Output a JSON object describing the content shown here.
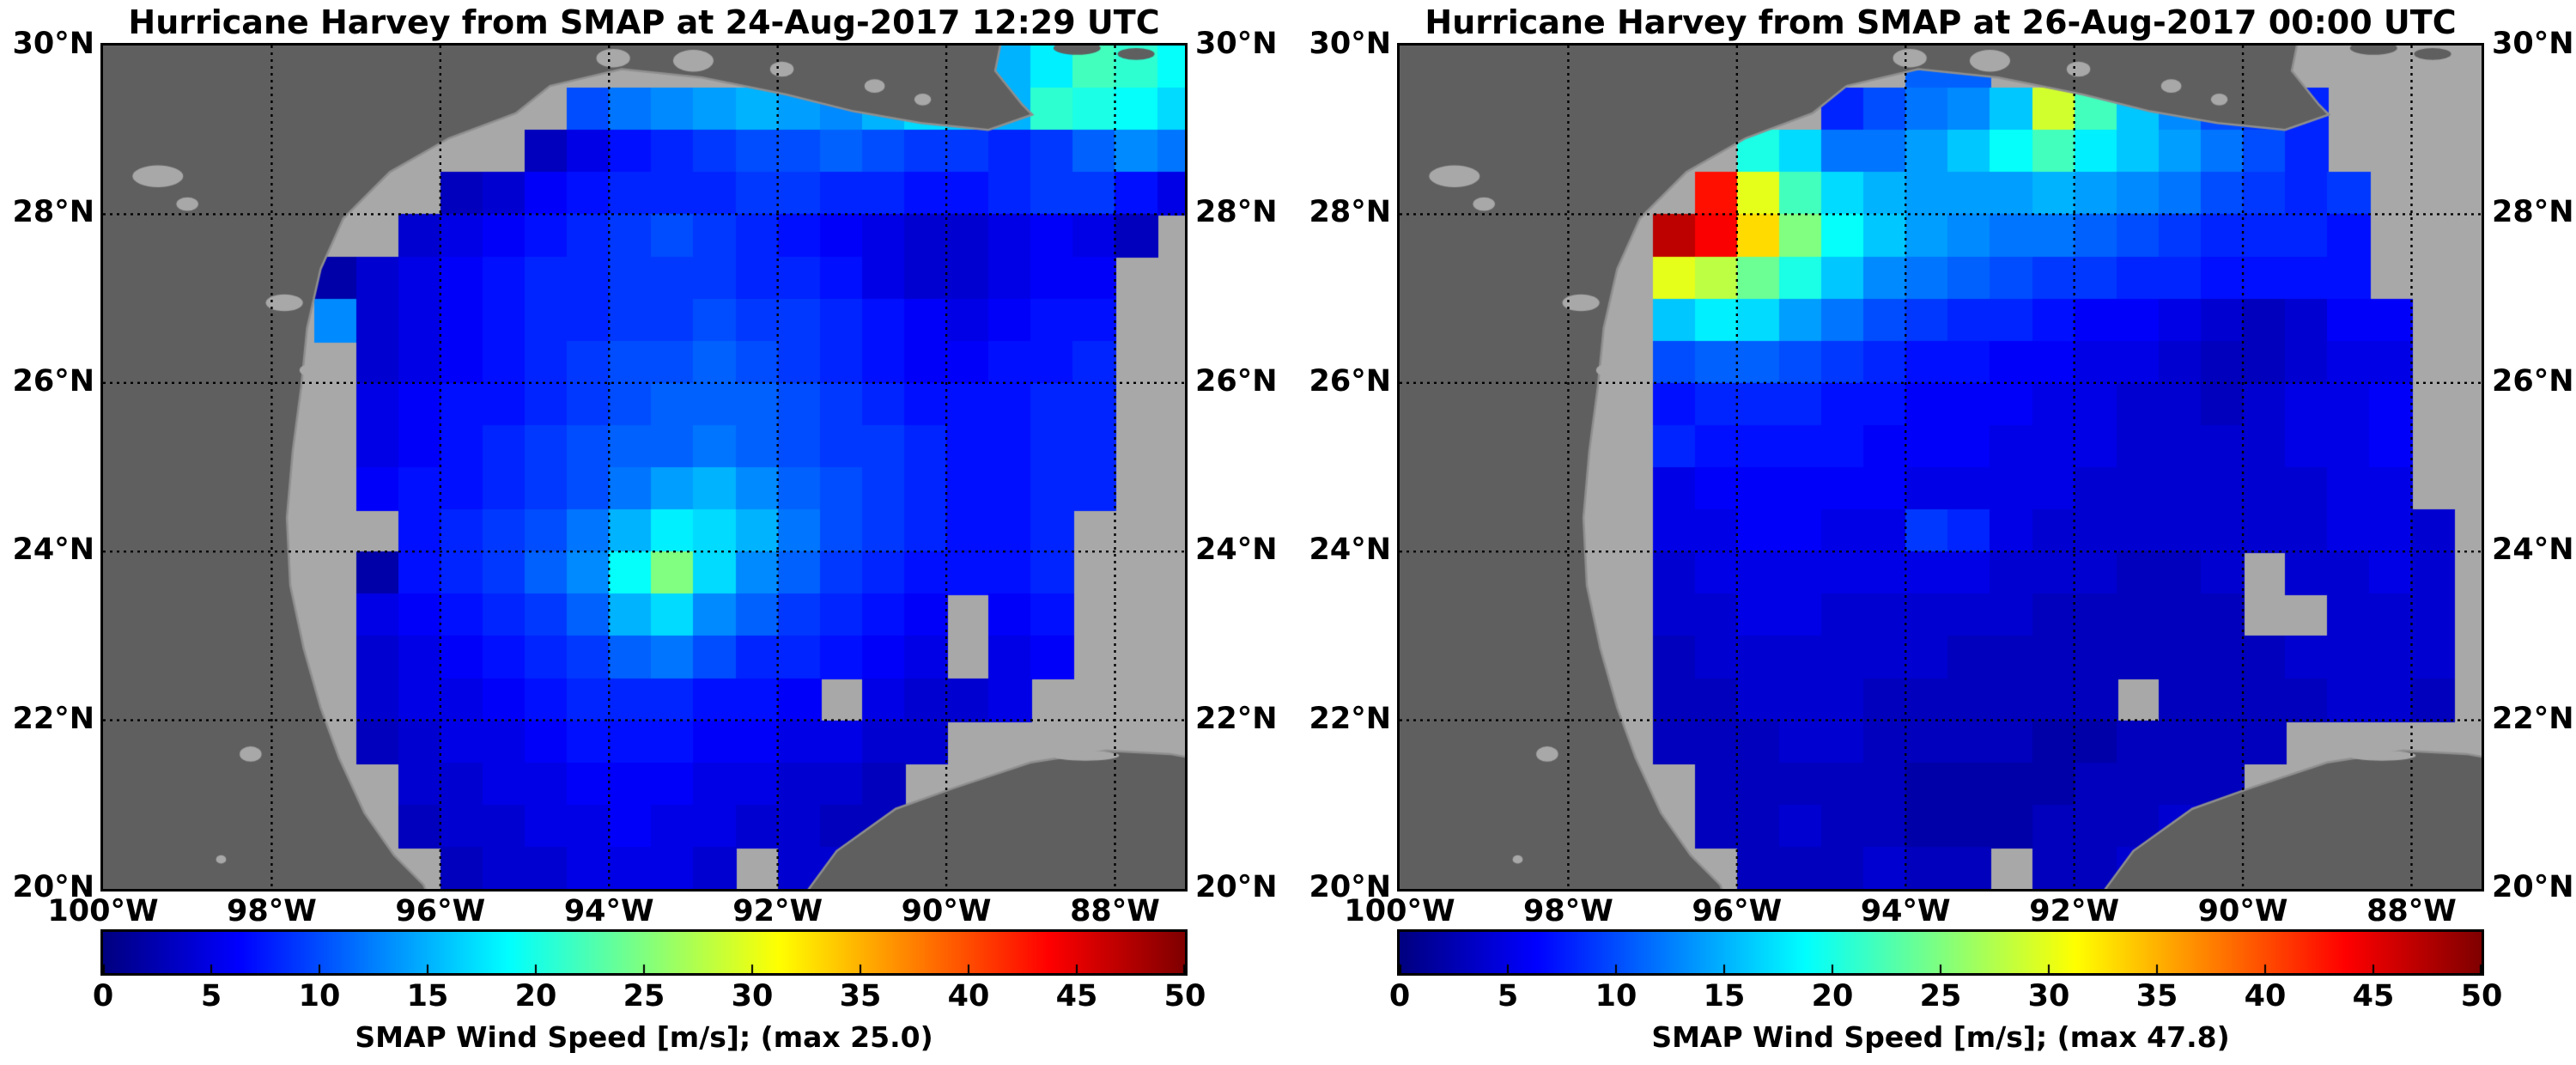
{
  "colors": {
    "background": "#ffffff",
    "land": "#5f5f5f",
    "no_data_ocean": "#a8a8a8",
    "coastline": "#8f8f8f",
    "frame": "#000000",
    "gridline": "#000000",
    "text": "#000000",
    "colormap_low": "#000080",
    "colormap_high": "#800000"
  },
  "axes": {
    "lat_tick_values": [
      30,
      28,
      26,
      24,
      22,
      20
    ],
    "lat_tick_labels": [
      "30°N",
      "28°N",
      "26°N",
      "24°N",
      "22°N",
      "20°N"
    ],
    "lon_tick_values": [
      -100,
      -98,
      -96,
      -94,
      -92,
      -90,
      -88
    ],
    "lon_tick_labels": [
      "100°W",
      "98°W",
      "96°W",
      "94°W",
      "92°W",
      "90°W",
      "88°W"
    ],
    "lat_range": [
      20,
      30
    ],
    "lon_range": [
      -100,
      -87.17
    ],
    "grid": "dotted"
  },
  "colorbar": {
    "vmin": 0,
    "vmax": 50,
    "tick_values": [
      0,
      5,
      10,
      15,
      20,
      25,
      30,
      35,
      40,
      45,
      50
    ],
    "tick_labels": [
      "0",
      "5",
      "10",
      "15",
      "20",
      "25",
      "30",
      "35",
      "40",
      "45",
      "50"
    ],
    "colormap": "jet",
    "orientation": "horizontal"
  },
  "chart_data": [
    {
      "type": "heatmap",
      "title": "Hurricane Harvey from SMAP at 24-Aug-2017 12:29 UTC",
      "satellite": "SMAP",
      "timestamp_label": "24-Aug-2017 12:29 UTC",
      "colorbar_label": "SMAP Wind Speed [m/s]; (max 25.0)",
      "max_wind_ms": 25.0,
      "units": "m/s",
      "zlim": [
        0,
        50
      ],
      "grid": {
        "lon_start": -100,
        "lat_start": 30,
        "cell_deg": 0.5,
        "ncols": 26,
        "nrows": 20
      },
      "values": [
        [
          null,
          null,
          null,
          null,
          null,
          null,
          null,
          null,
          null,
          null,
          null,
          null,
          null,
          null,
          null,
          null,
          null,
          null,
          null,
          null,
          null,
          15,
          18,
          22,
          21,
          19
        ],
        [
          null,
          null,
          null,
          null,
          null,
          null,
          null,
          null,
          null,
          null,
          null,
          10,
          12,
          13,
          14,
          15,
          14,
          13,
          15,
          17,
          16,
          15,
          21,
          20,
          19,
          17
        ],
        [
          null,
          null,
          null,
          null,
          null,
          null,
          null,
          null,
          null,
          null,
          3,
          5,
          7,
          8,
          9,
          10,
          10,
          11,
          10,
          9,
          9,
          8,
          9,
          11,
          13,
          12
        ],
        [
          null,
          null,
          null,
          null,
          null,
          null,
          null,
          null,
          3,
          4,
          6,
          7,
          8,
          8,
          8,
          9,
          9,
          8,
          8,
          7,
          7,
          8,
          9,
          9,
          7,
          5
        ],
        [
          null,
          null,
          null,
          null,
          null,
          null,
          null,
          4,
          5,
          6,
          7,
          8,
          9,
          10,
          9,
          8,
          7,
          6,
          5,
          4,
          4,
          5,
          6,
          5,
          3,
          null
        ],
        [
          null,
          null,
          null,
          null,
          null,
          2,
          4,
          5,
          6,
          7,
          8,
          8,
          9,
          9,
          9,
          8,
          8,
          7,
          5,
          4,
          4,
          5,
          6,
          6,
          null,
          null
        ],
        [
          null,
          null,
          null,
          null,
          null,
          13,
          4,
          5,
          6,
          7,
          8,
          8,
          9,
          9,
          10,
          9,
          9,
          8,
          7,
          6,
          5,
          6,
          7,
          7,
          null,
          null
        ],
        [
          null,
          null,
          null,
          null,
          null,
          null,
          4,
          5,
          6,
          7,
          8,
          9,
          10,
          10,
          11,
          10,
          9,
          8,
          7,
          6,
          6,
          7,
          7,
          8,
          null,
          null
        ],
        [
          null,
          null,
          null,
          null,
          null,
          null,
          5,
          6,
          7,
          7,
          8,
          9,
          10,
          11,
          11,
          11,
          10,
          9,
          8,
          7,
          7,
          7,
          8,
          8,
          null,
          null
        ],
        [
          null,
          null,
          null,
          null,
          null,
          null,
          5,
          6,
          7,
          8,
          9,
          10,
          11,
          11,
          12,
          11,
          10,
          9,
          9,
          8,
          7,
          7,
          8,
          8,
          null,
          null
        ],
        [
          null,
          null,
          null,
          null,
          null,
          null,
          6,
          7,
          7,
          8,
          9,
          10,
          12,
          14,
          15,
          13,
          11,
          10,
          9,
          8,
          7,
          7,
          8,
          8,
          null,
          null
        ],
        [
          null,
          null,
          null,
          null,
          null,
          null,
          null,
          7,
          8,
          9,
          10,
          12,
          15,
          18,
          17,
          15,
          12,
          10,
          9,
          8,
          7,
          7,
          8,
          null,
          null,
          null
        ],
        [
          null,
          null,
          null,
          null,
          null,
          null,
          2,
          7,
          8,
          9,
          11,
          13,
          19,
          25,
          17,
          13,
          11,
          9,
          8,
          7,
          7,
          7,
          8,
          null,
          null,
          null
        ],
        [
          null,
          null,
          null,
          null,
          null,
          null,
          5,
          6,
          7,
          8,
          9,
          11,
          15,
          17,
          13,
          11,
          9,
          8,
          7,
          6,
          null,
          6,
          7,
          null,
          null,
          null
        ],
        [
          null,
          null,
          null,
          null,
          null,
          null,
          4,
          5,
          6,
          7,
          8,
          9,
          11,
          12,
          10,
          8,
          8,
          7,
          6,
          5,
          null,
          5,
          6,
          null,
          null,
          null
        ],
        [
          null,
          null,
          null,
          null,
          null,
          null,
          4,
          5,
          5,
          6,
          7,
          8,
          8,
          8,
          7,
          7,
          6,
          null,
          5,
          4,
          4,
          5,
          null,
          null,
          null,
          null
        ],
        [
          null,
          null,
          null,
          null,
          null,
          null,
          3,
          4,
          5,
          5,
          6,
          7,
          7,
          7,
          6,
          6,
          5,
          5,
          4,
          4,
          null,
          null,
          null,
          null,
          null,
          null
        ],
        [
          null,
          null,
          null,
          null,
          null,
          null,
          null,
          4,
          4,
          5,
          5,
          6,
          6,
          6,
          5,
          5,
          4,
          4,
          3,
          null,
          null,
          null,
          null,
          null,
          null,
          null
        ],
        [
          null,
          null,
          null,
          null,
          null,
          null,
          null,
          3,
          4,
          4,
          5,
          5,
          6,
          5,
          5,
          4,
          4,
          3,
          3,
          null,
          null,
          null,
          null,
          null,
          null,
          null
        ],
        [
          null,
          null,
          null,
          null,
          null,
          null,
          null,
          null,
          3,
          4,
          4,
          5,
          5,
          5,
          4,
          null,
          4,
          4,
          null,
          null,
          null,
          null,
          null,
          null,
          null,
          null
        ]
      ]
    },
    {
      "type": "heatmap",
      "title": "Hurricane Harvey from SMAP at 26-Aug-2017 00:00 UTC",
      "satellite": "SMAP",
      "timestamp_label": "26-Aug-2017 00:00 UTC",
      "colorbar_label": "SMAP Wind Speed [m/s]; (max 47.8)",
      "max_wind_ms": 47.8,
      "units": "m/s",
      "zlim": [
        0,
        50
      ],
      "grid": {
        "lon_start": -100,
        "lat_start": 30,
        "cell_deg": 0.5,
        "ncols": 26,
        "nrows": 20
      },
      "values": [
        [
          null,
          null,
          null,
          null,
          null,
          null,
          null,
          null,
          null,
          null,
          null,
          null,
          11,
          11,
          null,
          null,
          13,
          12,
          null,
          null,
          null,
          null,
          null,
          null,
          null,
          null
        ],
        [
          null,
          null,
          null,
          null,
          null,
          null,
          null,
          null,
          null,
          null,
          8,
          10,
          12,
          13,
          16,
          29,
          22,
          16,
          13,
          10,
          9,
          8,
          null,
          null,
          null,
          null
        ],
        [
          null,
          null,
          null,
          null,
          null,
          null,
          null,
          null,
          20,
          17,
          12,
          12,
          14,
          16,
          19,
          22,
          18,
          16,
          14,
          12,
          10,
          8,
          null,
          null,
          null,
          null
        ],
        [
          null,
          null,
          null,
          null,
          null,
          null,
          null,
          43,
          30,
          22,
          17,
          15,
          14,
          14,
          14,
          15,
          14,
          13,
          12,
          10,
          9,
          8,
          9,
          null,
          null,
          null
        ],
        [
          null,
          null,
          null,
          null,
          null,
          null,
          47,
          44,
          33,
          25,
          19,
          16,
          14,
          13,
          12,
          12,
          11,
          10,
          9,
          8,
          8,
          8,
          7,
          null,
          null,
          null
        ],
        [
          null,
          null,
          null,
          null,
          null,
          null,
          30,
          28,
          24,
          20,
          16,
          13,
          12,
          11,
          10,
          9,
          9,
          8,
          8,
          7,
          7,
          7,
          7,
          null,
          null,
          null
        ],
        [
          null,
          null,
          null,
          null,
          null,
          null,
          16,
          18,
          17,
          14,
          12,
          10,
          9,
          8,
          8,
          7,
          6,
          6,
          5,
          4,
          3,
          4,
          6,
          6,
          null,
          null
        ],
        [
          null,
          null,
          null,
          null,
          null,
          null,
          10,
          11,
          11,
          10,
          9,
          8,
          7,
          7,
          6,
          6,
          5,
          5,
          4,
          3,
          3,
          4,
          5,
          5,
          null,
          null
        ],
        [
          null,
          null,
          null,
          null,
          null,
          null,
          7,
          8,
          8,
          8,
          7,
          7,
          6,
          6,
          6,
          5,
          5,
          4,
          4,
          3,
          4,
          5,
          5,
          6,
          null,
          null
        ],
        [
          null,
          null,
          null,
          null,
          null,
          null,
          8,
          7,
          7,
          7,
          7,
          6,
          6,
          6,
          5,
          5,
          5,
          4,
          4,
          4,
          4,
          5,
          5,
          6,
          null,
          null
        ],
        [
          null,
          null,
          null,
          null,
          null,
          null,
          5,
          6,
          6,
          6,
          6,
          6,
          5,
          5,
          5,
          5,
          4,
          4,
          4,
          4,
          4,
          4,
          5,
          5,
          null,
          null
        ],
        [
          null,
          null,
          null,
          null,
          null,
          null,
          5,
          5,
          6,
          6,
          5,
          5,
          9,
          8,
          5,
          4,
          4,
          4,
          4,
          4,
          4,
          4,
          5,
          5,
          4,
          null
        ],
        [
          null,
          null,
          null,
          null,
          null,
          null,
          4,
          5,
          5,
          5,
          5,
          5,
          5,
          5,
          4,
          4,
          4,
          3,
          3,
          4,
          null,
          4,
          4,
          5,
          4,
          null
        ],
        [
          null,
          null,
          null,
          null,
          null,
          null,
          4,
          4,
          5,
          5,
          4,
          4,
          4,
          4,
          4,
          3,
          3,
          3,
          3,
          3,
          null,
          null,
          4,
          4,
          4,
          null
        ],
        [
          null,
          null,
          null,
          null,
          null,
          null,
          3,
          4,
          4,
          4,
          4,
          4,
          4,
          3,
          3,
          3,
          3,
          3,
          3,
          3,
          3,
          4,
          4,
          4,
          4,
          null
        ],
        [
          null,
          null,
          null,
          null,
          null,
          null,
          3,
          3,
          4,
          4,
          4,
          3,
          3,
          3,
          3,
          3,
          3,
          null,
          3,
          3,
          3,
          3,
          4,
          4,
          3,
          null
        ],
        [
          null,
          null,
          null,
          null,
          null,
          null,
          3,
          3,
          3,
          4,
          4,
          3,
          3,
          3,
          3,
          2,
          2,
          3,
          3,
          3,
          3,
          null,
          null,
          null,
          null,
          null
        ],
        [
          null,
          null,
          null,
          null,
          null,
          null,
          null,
          3,
          3,
          3,
          3,
          3,
          2,
          2,
          2,
          2,
          3,
          3,
          3,
          3,
          null,
          null,
          null,
          null,
          null,
          null
        ],
        [
          null,
          null,
          null,
          null,
          null,
          null,
          null,
          3,
          3,
          4,
          3,
          3,
          2,
          2,
          2,
          3,
          3,
          3,
          4,
          null,
          null,
          null,
          null,
          null,
          null,
          null
        ],
        [
          null,
          null,
          null,
          null,
          null,
          null,
          null,
          null,
          3,
          3,
          3,
          4,
          3,
          3,
          null,
          3,
          3,
          4,
          null,
          null,
          null,
          null,
          null,
          null,
          null,
          null
        ]
      ]
    }
  ]
}
